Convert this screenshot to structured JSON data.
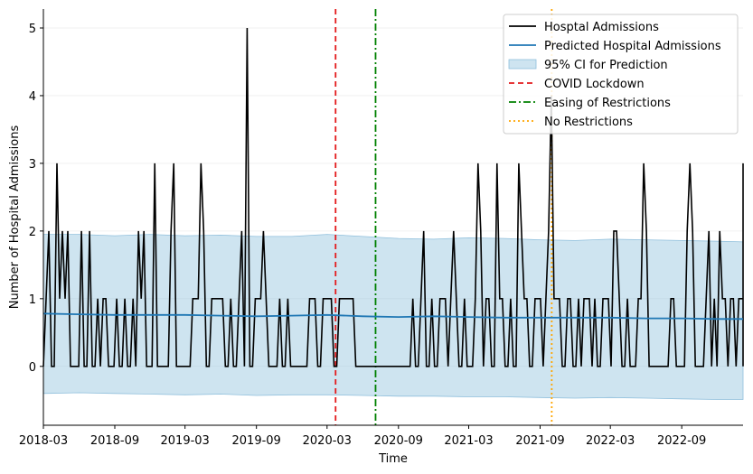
{
  "chart_data": {
    "type": "line",
    "xlabel": "Time",
    "ylabel": "Number of Hospital Admissions",
    "xlim": [
      "2018-03-01",
      "2023-02-06"
    ],
    "ylim": [
      -0.87,
      5.28
    ],
    "xticks": [
      {
        "date": "2018-03-01",
        "label": "2018-03"
      },
      {
        "date": "2018-09-01",
        "label": "2018-09"
      },
      {
        "date": "2019-03-01",
        "label": "2019-03"
      },
      {
        "date": "2019-09-01",
        "label": "2019-09"
      },
      {
        "date": "2020-03-01",
        "label": "2020-03"
      },
      {
        "date": "2020-09-01",
        "label": "2020-09"
      },
      {
        "date": "2021-03-01",
        "label": "2021-03"
      },
      {
        "date": "2021-09-01",
        "label": "2021-09"
      },
      {
        "date": "2022-03-01",
        "label": "2022-03"
      },
      {
        "date": "2022-09-01",
        "label": "2022-09"
      }
    ],
    "yticks": [
      0,
      1,
      2,
      3,
      4,
      5
    ],
    "grid": "horizontal",
    "legend_position": "top-right",
    "series": [
      {
        "name": "Hosptal Admissions",
        "color": "#000000",
        "start_date": "2018-03-01",
        "interval_days": 7,
        "values": [
          0,
          1,
          2,
          0,
          0,
          3,
          1,
          2,
          1,
          2,
          0,
          0,
          0,
          0,
          2,
          0,
          0,
          2,
          0,
          0,
          1,
          0,
          1,
          1,
          0,
          0,
          0,
          1,
          0,
          0,
          1,
          0,
          0,
          1,
          0,
          2,
          1,
          2,
          0,
          0,
          0,
          3,
          0,
          0,
          0,
          0,
          0,
          2,
          3,
          0,
          0,
          0,
          0,
          0,
          0,
          1,
          1,
          1,
          3,
          2,
          0,
          0,
          1,
          1,
          1,
          1,
          1,
          0,
          0,
          1,
          0,
          0,
          1,
          2,
          0,
          5,
          0,
          0,
          1,
          1,
          1,
          2,
          1,
          0,
          0,
          0,
          0,
          1,
          0,
          0,
          1,
          0,
          0,
          0,
          0,
          0,
          0,
          0,
          1,
          1,
          1,
          0,
          0,
          1,
          1,
          1,
          1,
          0,
          0,
          1,
          1,
          1,
          1,
          1,
          1,
          0,
          0,
          0,
          0,
          0,
          0,
          0,
          0,
          0,
          0,
          0,
          0,
          0,
          0,
          0,
          0,
          0,
          0,
          0,
          0,
          0,
          1,
          0,
          0,
          1,
          2,
          0,
          0,
          1,
          0,
          0,
          1,
          1,
          1,
          0,
          1,
          2,
          1,
          0,
          0,
          1,
          0,
          0,
          0,
          1,
          3,
          2,
          0,
          1,
          1,
          0,
          0,
          3,
          1,
          1,
          0,
          0,
          1,
          0,
          0,
          3,
          2,
          1,
          1,
          0,
          0,
          1,
          1,
          1,
          0,
          1,
          2,
          4,
          1,
          1,
          1,
          0,
          0,
          1,
          1,
          0,
          0,
          1,
          0,
          1,
          1,
          1,
          0,
          1,
          0,
          0,
          1,
          1,
          1,
          0,
          2,
          2,
          1,
          0,
          0,
          1,
          0,
          0,
          0,
          1,
          1,
          3,
          2,
          0,
          0,
          0,
          0,
          0,
          0,
          0,
          0,
          1,
          1,
          0,
          0,
          0,
          0,
          2,
          3,
          2,
          0,
          0,
          0,
          0,
          1,
          2,
          0,
          1,
          0,
          2,
          1,
          1,
          0,
          1,
          1,
          0,
          1,
          1,
          1,
          0,
          0,
          1,
          2,
          3,
          2,
          0,
          0,
          0,
          0,
          1,
          3,
          2,
          0,
          1,
          1,
          1,
          1,
          0,
          0,
          1,
          1,
          0,
          0,
          0,
          0,
          1,
          1,
          1,
          1,
          0,
          0,
          1,
          1,
          1,
          0,
          0,
          1,
          1,
          1,
          0,
          1,
          0,
          0,
          0,
          0,
          0,
          0,
          0,
          0,
          0,
          0,
          0,
          0,
          1,
          0,
          0,
          0,
          1,
          0,
          0,
          1,
          0,
          1,
          2,
          1,
          0,
          0,
          1,
          0,
          0,
          1,
          0,
          0,
          1,
          0,
          0,
          0,
          0,
          0,
          0,
          0,
          0,
          0,
          0,
          0,
          2,
          1,
          0,
          0,
          0,
          1,
          0,
          1,
          0,
          1,
          2,
          1,
          2,
          0,
          0,
          0,
          1,
          0,
          2,
          1,
          0,
          0,
          0,
          0,
          2,
          0,
          1,
          1,
          0,
          0,
          0,
          0,
          0,
          0,
          0,
          0,
          1,
          0,
          1,
          1,
          2,
          1,
          0,
          0,
          0,
          0,
          0,
          0,
          0,
          0,
          0,
          1,
          0,
          0,
          0,
          2,
          0,
          2,
          0
        ]
      },
      {
        "name": "Predicted Hospital Admissions",
        "color": "#1f77b4",
        "dates": [
          "2018-03-01",
          "2018-06-01",
          "2018-09-01",
          "2018-12-01",
          "2019-03-01",
          "2019-06-01",
          "2019-09-01",
          "2019-12-01",
          "2020-03-01",
          "2020-06-01",
          "2020-09-01",
          "2020-12-01",
          "2021-03-01",
          "2021-06-01",
          "2021-09-01",
          "2021-12-01",
          "2022-03-01",
          "2022-06-01",
          "2022-09-01",
          "2022-12-01",
          "2023-02-06"
        ],
        "values": [
          0.78,
          0.77,
          0.76,
          0.76,
          0.76,
          0.75,
          0.74,
          0.75,
          0.76,
          0.74,
          0.73,
          0.74,
          0.73,
          0.72,
          0.72,
          0.72,
          0.72,
          0.71,
          0.71,
          0.7,
          0.7
        ]
      },
      {
        "name": "95% CI for Prediction",
        "color": "#a6cee3",
        "dates": [
          "2018-03-01",
          "2018-06-01",
          "2018-09-01",
          "2018-12-01",
          "2019-03-01",
          "2019-06-01",
          "2019-09-01",
          "2019-12-01",
          "2020-03-01",
          "2020-06-01",
          "2020-09-01",
          "2020-12-01",
          "2021-03-01",
          "2021-06-01",
          "2021-09-01",
          "2021-12-01",
          "2022-03-01",
          "2022-06-01",
          "2022-09-01",
          "2022-12-01",
          "2023-02-06"
        ],
        "upper": [
          1.95,
          1.95,
          1.93,
          1.95,
          1.93,
          1.94,
          1.92,
          1.92,
          1.95,
          1.92,
          1.89,
          1.88,
          1.9,
          1.89,
          1.87,
          1.86,
          1.88,
          1.87,
          1.86,
          1.85,
          1.84
        ],
        "lower": [
          -0.4,
          -0.39,
          -0.4,
          -0.41,
          -0.42,
          -0.41,
          -0.43,
          -0.42,
          -0.42,
          -0.43,
          -0.44,
          -0.44,
          -0.45,
          -0.45,
          -0.46,
          -0.47,
          -0.46,
          -0.47,
          -0.48,
          -0.49,
          -0.49
        ]
      }
    ],
    "events": [
      {
        "name": "COVID Lockdown",
        "date": "2020-03-23",
        "color": "#e31a1c",
        "style": "dashed"
      },
      {
        "name": "Easing of Restrictions",
        "date": "2020-07-04",
        "color": "#008000",
        "style": "dashdot"
      },
      {
        "name": "No Restrictions",
        "date": "2021-10-01",
        "color": "#ffa500",
        "style": "dotted"
      }
    ]
  }
}
